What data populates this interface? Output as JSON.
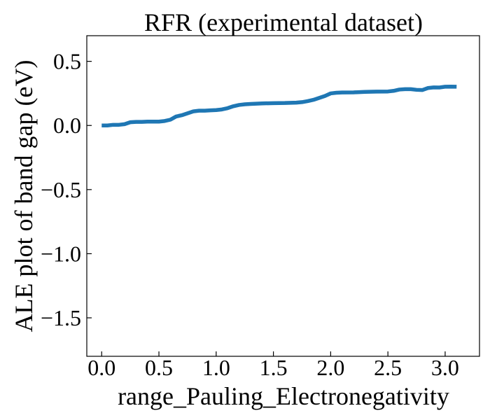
{
  "chart_data": {
    "type": "line",
    "title": "RFR (experimental dataset)",
    "xlabel": "range_Pauling_Electronegativity",
    "ylabel": "ALE plot of band gap (eV)",
    "xlim": [
      -0.13,
      3.3
    ],
    "ylim": [
      -1.8,
      0.7
    ],
    "xticks": [
      0.0,
      0.5,
      1.0,
      1.5,
      2.0,
      2.5,
      3.0
    ],
    "xtick_labels": [
      "0.0",
      "0.5",
      "1.0",
      "1.5",
      "2.0",
      "2.5",
      "3.0"
    ],
    "yticks": [
      0.5,
      0.0,
      -0.5,
      -1.0,
      -1.5
    ],
    "ytick_labels": [
      "0.5",
      "0.0",
      "−0.5",
      "−1.0",
      "−1.5"
    ],
    "grid": false,
    "legend": false,
    "line_color": "#1f77b4",
    "series": [
      {
        "x": [
          0.0,
          0.05,
          0.1,
          0.15,
          0.2,
          0.25,
          0.3,
          0.35,
          0.4,
          0.45,
          0.5,
          0.55,
          0.6,
          0.65,
          0.7,
          0.75,
          0.8,
          0.85,
          0.9,
          0.95,
          1.0,
          1.05,
          1.1,
          1.15,
          1.2,
          1.25,
          1.3,
          1.35,
          1.4,
          1.5,
          1.6,
          1.7,
          1.75,
          1.8,
          1.85,
          1.9,
          1.95,
          2.0,
          2.05,
          2.1,
          2.2,
          2.3,
          2.4,
          2.5,
          2.55,
          2.6,
          2.65,
          2.7,
          2.75,
          2.8,
          2.85,
          2.9,
          2.95,
          3.0,
          3.05,
          3.1
        ],
        "y": [
          0.0,
          0.0,
          0.005,
          0.005,
          0.01,
          0.025,
          0.028,
          0.028,
          0.03,
          0.03,
          0.03,
          0.035,
          0.045,
          0.07,
          0.08,
          0.095,
          0.11,
          0.115,
          0.115,
          0.118,
          0.12,
          0.125,
          0.135,
          0.15,
          0.16,
          0.165,
          0.168,
          0.17,
          0.172,
          0.174,
          0.175,
          0.178,
          0.182,
          0.19,
          0.2,
          0.215,
          0.23,
          0.25,
          0.255,
          0.257,
          0.258,
          0.262,
          0.264,
          0.265,
          0.27,
          0.28,
          0.283,
          0.283,
          0.278,
          0.276,
          0.292,
          0.297,
          0.296,
          0.302,
          0.303,
          0.302
        ]
      }
    ]
  }
}
